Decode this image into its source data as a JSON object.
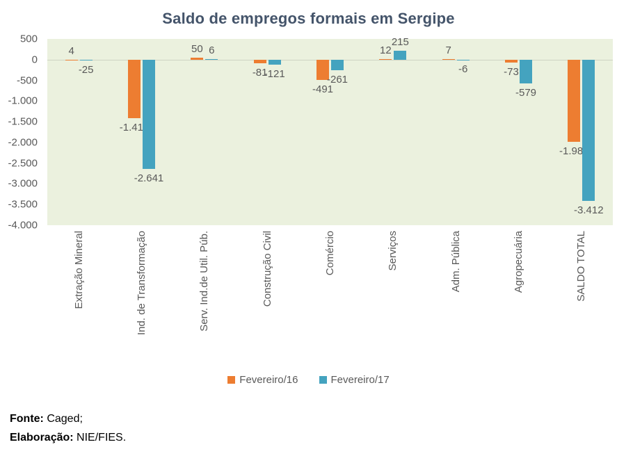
{
  "chart_data": {
    "type": "bar",
    "title": "Saldo de empregos formais em Sergipe",
    "categories": [
      "Extração Mineral",
      "Ind. de Transformação",
      "Serv. Ind.de Util. Púb.",
      "Construção Civil",
      "Comércio",
      "Serviços",
      "Adm. Pública",
      "Agropecuária",
      "SALDO TOTAL"
    ],
    "series": [
      {
        "name": "Fevereiro/16",
        "color": "#ED7D31",
        "values": [
          4,
          -1417,
          50,
          -81,
          -491,
          12,
          7,
          -73,
          -1989
        ],
        "labels": [
          "4",
          "-1.417",
          "50",
          "-81",
          "-491",
          "12",
          "7",
          "-73",
          "-1.989"
        ]
      },
      {
        "name": "Fevereiro/17",
        "color": "#44A3BF",
        "values": [
          -25,
          -2641,
          6,
          -121,
          -261,
          215,
          -6,
          -579,
          -3412
        ],
        "labels": [
          "-25",
          "-2.641",
          "6",
          "-121",
          "-261",
          "215",
          "-6",
          "-579",
          "-3.412"
        ]
      }
    ],
    "ylim": [
      -4000,
      500
    ],
    "yticks": [
      {
        "v": 500,
        "label": "500"
      },
      {
        "v": 0,
        "label": "0"
      },
      {
        "v": -500,
        "label": "-500"
      },
      {
        "v": -1000,
        "label": "-1.000"
      },
      {
        "v": -1500,
        "label": "-1.500"
      },
      {
        "v": -2000,
        "label": "-2.000"
      },
      {
        "v": -2500,
        "label": "-2.500"
      },
      {
        "v": -3000,
        "label": "-3.000"
      },
      {
        "v": -3500,
        "label": "-3.500"
      },
      {
        "v": -4000,
        "label": "-4.000"
      }
    ],
    "plot_bg": "#EBF1DE",
    "grid": false,
    "legend_position": "bottom"
  },
  "footer": {
    "source_label": "Fonte:",
    "source_text": "Caged;",
    "elaboration_label": "Elaboração:",
    "elaboration_text": "NIE/FIES."
  }
}
